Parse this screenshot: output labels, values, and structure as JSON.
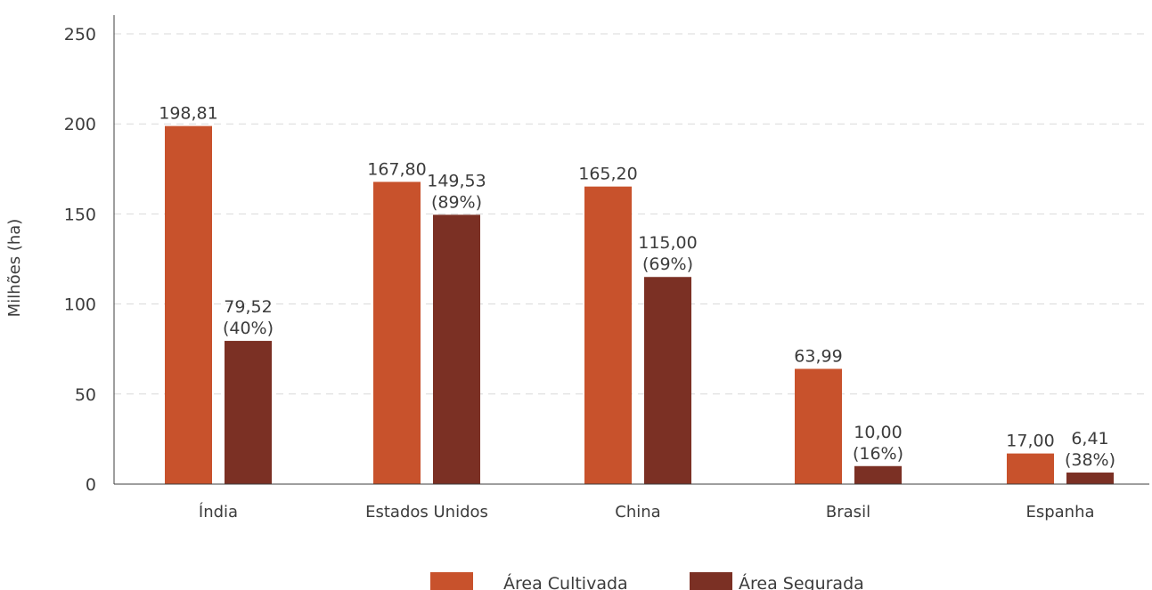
{
  "chart_data": {
    "type": "bar",
    "categories": [
      "Índia",
      "Estados Unidos",
      "China",
      "Brasil",
      "Espanha"
    ],
    "series": [
      {
        "name": "Área Cultivada",
        "color": "#c8522c",
        "values": [
          198.81,
          167.8,
          165.2,
          63.99,
          17.0
        ],
        "labels": [
          [
            "198,81"
          ],
          [
            "167,80"
          ],
          [
            "165,20"
          ],
          [
            "63,99"
          ],
          [
            "17,00"
          ]
        ]
      },
      {
        "name": "Área Segurada",
        "color": "#7b3024",
        "values": [
          79.52,
          149.53,
          115.0,
          10.0,
          6.41
        ],
        "labels": [
          [
            "79,52",
            "(40%)"
          ],
          [
            "149,53",
            "(89%)"
          ],
          [
            "115,00",
            "(69%)"
          ],
          [
            "10,00",
            "(16%)"
          ],
          [
            "6,41",
            "(38%)"
          ]
        ]
      }
    ],
    "ylabel": "Milhões (ha)",
    "xlabel": "",
    "title": "",
    "ylim": [
      0,
      250
    ],
    "yticks": [
      "0",
      "50",
      "100",
      "150",
      "200",
      "250"
    ],
    "grid": true,
    "legend_position": "bottom-center"
  }
}
